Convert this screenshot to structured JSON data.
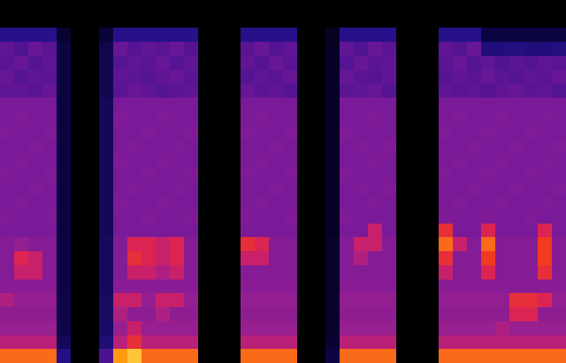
{
  "chart_data": {
    "type": "heatmap",
    "zlim": [
      0,
      10
    ],
    "xlim": [
      -0.5,
      39.5
    ],
    "ylim": [
      25.5,
      -0.5
    ],
    "tick_labels": false,
    "grid": false,
    "cells": [
      [
        0,
        0,
        0,
        0,
        0,
        0,
        0,
        0,
        0,
        0,
        0,
        0,
        0,
        0,
        0,
        0,
        0,
        0,
        0,
        0,
        0,
        0,
        0,
        0,
        0,
        0,
        0,
        0,
        0,
        0,
        0,
        0,
        0,
        0,
        0,
        0,
        0,
        0,
        0,
        0
      ],
      [
        0,
        0,
        0,
        0,
        0,
        0,
        0,
        0,
        0,
        0,
        0,
        0,
        0,
        0,
        0,
        0,
        0,
        0,
        0,
        0,
        0,
        0,
        0,
        0,
        0,
        0,
        0,
        0,
        0,
        0,
        0,
        0,
        0,
        0,
        0,
        0,
        0,
        0,
        0,
        0
      ],
      [
        3.5,
        3.5,
        3.5,
        3.5,
        1.5,
        0,
        0,
        1.8,
        3.5,
        3.5,
        3.5,
        3.5,
        3.5,
        3.5,
        0,
        0,
        0,
        3.5,
        3.5,
        3.5,
        3.5,
        0,
        0,
        1,
        3.5,
        3.5,
        3.5,
        3.5,
        0,
        0,
        0,
        3.5,
        3.5,
        3.5,
        2,
        2,
        2,
        2,
        2,
        2
      ],
      [
        4.6,
        4.3,
        4.7,
        4.5,
        2,
        0,
        0,
        2.3,
        4.7,
        4.4,
        4.6,
        4.5,
        4.7,
        4.4,
        0,
        0,
        0,
        4.5,
        4.7,
        4.4,
        4.6,
        0,
        0,
        1.2,
        4.6,
        4.3,
        4.7,
        4.5,
        0,
        0,
        0,
        4.6,
        4.4,
        4.7,
        3.2,
        3.2,
        3.3,
        3.2,
        3.2,
        3.3
      ],
      [
        4.5,
        4.7,
        4.4,
        4.6,
        2,
        0,
        0,
        2.3,
        4.4,
        4.6,
        4.5,
        4.7,
        4.4,
        4.6,
        0,
        0,
        0,
        4.6,
        4.4,
        4.7,
        4.5,
        0,
        0,
        1.2,
        4.4,
        4.7,
        4.5,
        4.6,
        0,
        0,
        0,
        4.5,
        4.7,
        4.4,
        4.6,
        4.3,
        4.5,
        4.4,
        4.6,
        4.5
      ],
      [
        4.7,
        4.4,
        4.6,
        4.5,
        2,
        0,
        0,
        2.3,
        4.6,
        4.5,
        4.4,
        4.6,
        4.7,
        4.5,
        0,
        0,
        0,
        4.4,
        4.6,
        4.5,
        4.7,
        0,
        0,
        1.2,
        4.7,
        4.5,
        4.4,
        4.6,
        0,
        0,
        0,
        4.4,
        4.6,
        4.5,
        4.7,
        4.5,
        4.4,
        4.6,
        4.5,
        4.7
      ],
      [
        4.6,
        4.6,
        4.5,
        4.7,
        2,
        0,
        0,
        2.3,
        4.5,
        4.7,
        4.6,
        4.4,
        4.5,
        4.6,
        0,
        0,
        0,
        4.7,
        4.5,
        4.6,
        4.4,
        0,
        0,
        1.2,
        4.5,
        4.6,
        4.7,
        4.4,
        0,
        0,
        0,
        4.6,
        4.5,
        4.6,
        4.4,
        4.6,
        4.7,
        4.5,
        4.6,
        4.4
      ],
      [
        5,
        5,
        5,
        5,
        2,
        0,
        0,
        2.5,
        5,
        5,
        5,
        5,
        5,
        5,
        0,
        0,
        0,
        5,
        5,
        5,
        5,
        0,
        0,
        1.2,
        5,
        5,
        5,
        5,
        0,
        0,
        0,
        5,
        5,
        5,
        5,
        5,
        5,
        5,
        5,
        5
      ],
      [
        5,
        5.1,
        5,
        5,
        2,
        0,
        0,
        2.5,
        5.1,
        5,
        5,
        5.1,
        5,
        5,
        0,
        0,
        0,
        5,
        5.1,
        5,
        5,
        0,
        0,
        1.2,
        5,
        5,
        5.1,
        5,
        0,
        0,
        0,
        5,
        5.1,
        5,
        5,
        5.1,
        5,
        5,
        5.1,
        5
      ],
      [
        5.1,
        5,
        5,
        5.1,
        2,
        0,
        0,
        2.5,
        5,
        5,
        5.1,
        5,
        5,
        5.1,
        0,
        0,
        0,
        5.1,
        5,
        5,
        5.1,
        0,
        0,
        1.2,
        5.1,
        5,
        5,
        5,
        0,
        0,
        0,
        5.1,
        5,
        5,
        5.1,
        5,
        5,
        5.1,
        5,
        5
      ],
      [
        5,
        5,
        5.1,
        5,
        2,
        0,
        0,
        2.5,
        5,
        5.1,
        5,
        5,
        5.1,
        5,
        0,
        0,
        0,
        5,
        5,
        5.1,
        5,
        0,
        0,
        1.2,
        5,
        5.1,
        5,
        5.1,
        0,
        0,
        0,
        5,
        5,
        5.1,
        5,
        5,
        5.1,
        5,
        5,
        5.1
      ],
      [
        5,
        5.1,
        5,
        5,
        2,
        0,
        0,
        2.5,
        5.1,
        5,
        5,
        5.1,
        5,
        5,
        0,
        0,
        0,
        5,
        5.1,
        5,
        5,
        0,
        0,
        1.2,
        5,
        5,
        5.1,
        5,
        0,
        0,
        0,
        5,
        5.1,
        5,
        5,
        5.1,
        5,
        5,
        5.1,
        5
      ],
      [
        5.1,
        5,
        5,
        5.1,
        2,
        0,
        0,
        2.5,
        5,
        5,
        5.1,
        5,
        5,
        5.1,
        0,
        0,
        0,
        5.1,
        5,
        5,
        5.1,
        0,
        0,
        1.2,
        5.1,
        5,
        5,
        5,
        0,
        0,
        0,
        5.1,
        5,
        5,
        5.1,
        5,
        5,
        5.1,
        5,
        5
      ],
      [
        5,
        5,
        5.1,
        5,
        2,
        0,
        0,
        2.5,
        5,
        5.1,
        5,
        5,
        5.1,
        5,
        0,
        0,
        0,
        5,
        5,
        5.1,
        5,
        0,
        0,
        1.2,
        5,
        5.1,
        5,
        5.1,
        0,
        0,
        0,
        5,
        5,
        5.1,
        5,
        5,
        5.1,
        5,
        5,
        5.1
      ],
      [
        5,
        5.1,
        5,
        5,
        2,
        0,
        0,
        2.5,
        5.1,
        5,
        5,
        5.1,
        5,
        5,
        0,
        0,
        0,
        5,
        5.1,
        5,
        5,
        0,
        0,
        1.2,
        5,
        5,
        5.1,
        5,
        0,
        0,
        0,
        5,
        5.1,
        5,
        5,
        5.1,
        5,
        5,
        5.1,
        5
      ],
      [
        5.1,
        5,
        5,
        5.1,
        2,
        0,
        0,
        2.5,
        5,
        5,
        5.1,
        5,
        5,
        5.1,
        0,
        0,
        0,
        5.1,
        5,
        5,
        5.1,
        0,
        0,
        1.2,
        5.1,
        5,
        5,
        5,
        0,
        0,
        0,
        5.1,
        5,
        5,
        5.1,
        5,
        5,
        5.1,
        5,
        5
      ],
      [
        5,
        5,
        5,
        5,
        2,
        0,
        0,
        2.5,
        5,
        5,
        5,
        5,
        5,
        5,
        0,
        0,
        0,
        5,
        5,
        5,
        5,
        0,
        0,
        1.2,
        5,
        5,
        6.5,
        5,
        0,
        0,
        0,
        7.5,
        5,
        5,
        7,
        5,
        5,
        5,
        7,
        5
      ],
      [
        5.2,
        5.5,
        5.2,
        5.2,
        2.1,
        0,
        0,
        2.6,
        5.2,
        7,
        7,
        6.5,
        7,
        5.2,
        0,
        0,
        0,
        7.5,
        7,
        5.2,
        5.2,
        0,
        0,
        1.3,
        5.2,
        6.5,
        6.5,
        5.2,
        0,
        0,
        0,
        8.5,
        6.5,
        5.2,
        8.5,
        5.2,
        5.2,
        5.2,
        8,
        5.2
      ],
      [
        5.2,
        7,
        6.5,
        5.2,
        2.1,
        0,
        0,
        2.6,
        5.2,
        7.5,
        7,
        6.5,
        7,
        5.2,
        0,
        0,
        0,
        6.5,
        6.5,
        5.2,
        5.2,
        0,
        0,
        1.3,
        5.2,
        6,
        5.2,
        5.2,
        0,
        0,
        0,
        7.5,
        5.2,
        5.2,
        8,
        5.2,
        5.2,
        5.2,
        8,
        5.2
      ],
      [
        5.2,
        6.5,
        6.5,
        5.2,
        2.1,
        0,
        0,
        2.6,
        5.2,
        6.5,
        6.5,
        6,
        6.5,
        5.2,
        0,
        0,
        0,
        5.2,
        5.2,
        5.2,
        5.2,
        0,
        0,
        1.3,
        5.2,
        5.2,
        5.2,
        5.2,
        0,
        0,
        0,
        6.5,
        5.2,
        5.2,
        7,
        5.2,
        5.2,
        5.2,
        7.5,
        5.2
      ],
      [
        5.3,
        5.3,
        5.3,
        5.3,
        2.1,
        0,
        0,
        2.6,
        5.3,
        5.3,
        5.3,
        5.3,
        5.3,
        5.3,
        0,
        0,
        0,
        5.3,
        5.3,
        5.3,
        5.3,
        0,
        0,
        1.3,
        5.3,
        5.3,
        5.3,
        5.3,
        0,
        0,
        0,
        5.3,
        5.3,
        5.3,
        5.3,
        5.3,
        5.3,
        5.3,
        5.3,
        5.3
      ],
      [
        6,
        5.5,
        5.5,
        5.5,
        2.2,
        0,
        0,
        2.7,
        6.5,
        6.5,
        5.5,
        6.5,
        6.5,
        5.5,
        0,
        0,
        0,
        5.5,
        5.5,
        5.5,
        5.5,
        0,
        0,
        1.4,
        5.5,
        5.5,
        5.5,
        5.5,
        0,
        0,
        0,
        5.5,
        5.5,
        5.5,
        5.5,
        5.5,
        7.5,
        7.5,
        7,
        5.5
      ],
      [
        5.4,
        5.4,
        5.4,
        5.4,
        2.2,
        0,
        0,
        2.7,
        6,
        5.4,
        5.4,
        6,
        5.4,
        5.4,
        0,
        0,
        0,
        5.4,
        5.4,
        5.4,
        5.4,
        0,
        0,
        1.4,
        5.4,
        5.4,
        5.4,
        5.4,
        0,
        0,
        0,
        5.4,
        5.4,
        5.4,
        5.4,
        5.4,
        7,
        7,
        5.4,
        5.4
      ],
      [
        5.6,
        5.6,
        5.6,
        5.6,
        2.2,
        0,
        0,
        2.8,
        5.6,
        6.5,
        5.6,
        5.6,
        5.6,
        5.6,
        0,
        0,
        0,
        5.6,
        5.6,
        5.6,
        5.6,
        0,
        0,
        1.4,
        5.6,
        5.6,
        5.6,
        5.6,
        0,
        0,
        0,
        5.6,
        5.6,
        5.6,
        5.6,
        6,
        5.6,
        5.6,
        5.6,
        5.6
      ],
      [
        6.2,
        6.2,
        6.2,
        6.2,
        2.5,
        0,
        0,
        3.1,
        6.2,
        7.5,
        6.2,
        6.2,
        6.2,
        6.2,
        0,
        0,
        0,
        6.2,
        6.2,
        6.2,
        6.2,
        0,
        0,
        1.6,
        6.2,
        6.2,
        6.2,
        6.2,
        0,
        0,
        0,
        6.2,
        6.2,
        6.2,
        6.2,
        6.2,
        6.2,
        6.2,
        6.2,
        6.2
      ],
      [
        8.5,
        8.5,
        8.5,
        8.5,
        3.4,
        0,
        0,
        4.2,
        9,
        9.5,
        8.5,
        8.5,
        8.5,
        8.5,
        0,
        0,
        0,
        8.5,
        8.5,
        8.5,
        8.5,
        0,
        0,
        2.1,
        8.5,
        8.5,
        8.5,
        8.5,
        0,
        0,
        0,
        8.5,
        8.5,
        8.5,
        8.5,
        8.5,
        8.5,
        8.5,
        8.5,
        8.5
      ]
    ]
  }
}
